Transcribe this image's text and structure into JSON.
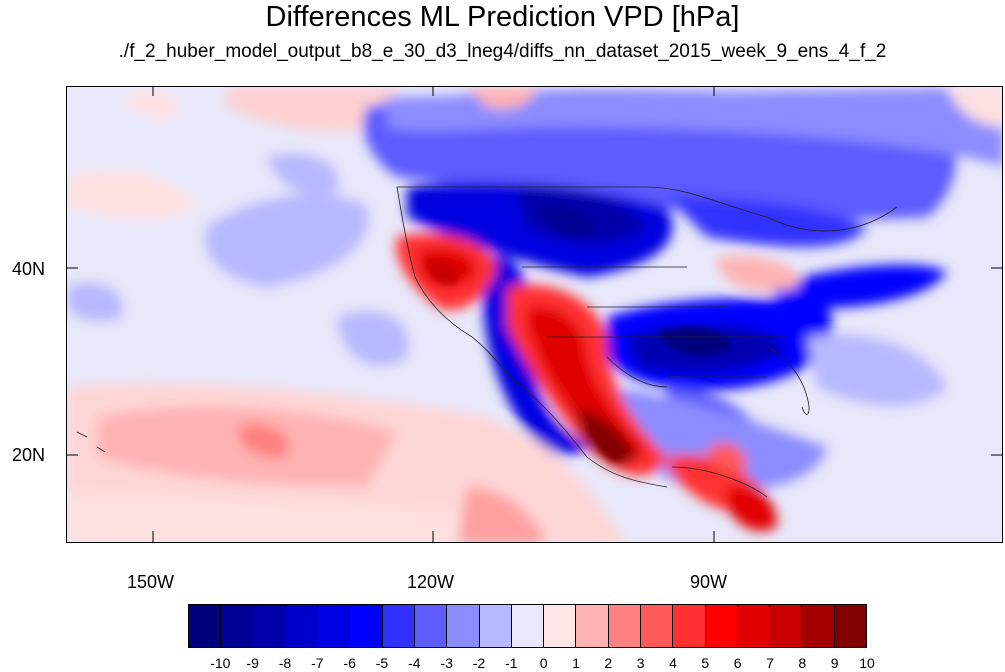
{
  "title": "Differences ML Prediction VPD [hPa]",
  "subtitle": "./f_2_huber_model_output_b8_e_30_d3_lneg4/diffs_nn_dataset_2015_week_9_ens_4_f_2",
  "map": {
    "lon_labels": [
      "150W",
      "120W",
      "90W"
    ],
    "lat_labels": [
      "40N",
      "20N"
    ]
  },
  "colorbar": {
    "labels": [
      "-10",
      "-9",
      "-8",
      "-7",
      "-6",
      "-5",
      "-4",
      "-3",
      "-2",
      "-1",
      "0",
      "1",
      "2",
      "3",
      "4",
      "5",
      "6",
      "7",
      "8",
      "9",
      "10"
    ],
    "colors": [
      "#00007f",
      "#000094",
      "#0000aa",
      "#0000c8",
      "#0000e0",
      "#0000ff",
      "#3030ff",
      "#5c5cff",
      "#8c8cff",
      "#b8b8ff",
      "#e8e8fa",
      "#ffe6e6",
      "#ffb3b3",
      "#ff8080",
      "#ff5a5a",
      "#ff3030",
      "#ff0000",
      "#e00000",
      "#c80000",
      "#a50000",
      "#820000"
    ]
  }
}
